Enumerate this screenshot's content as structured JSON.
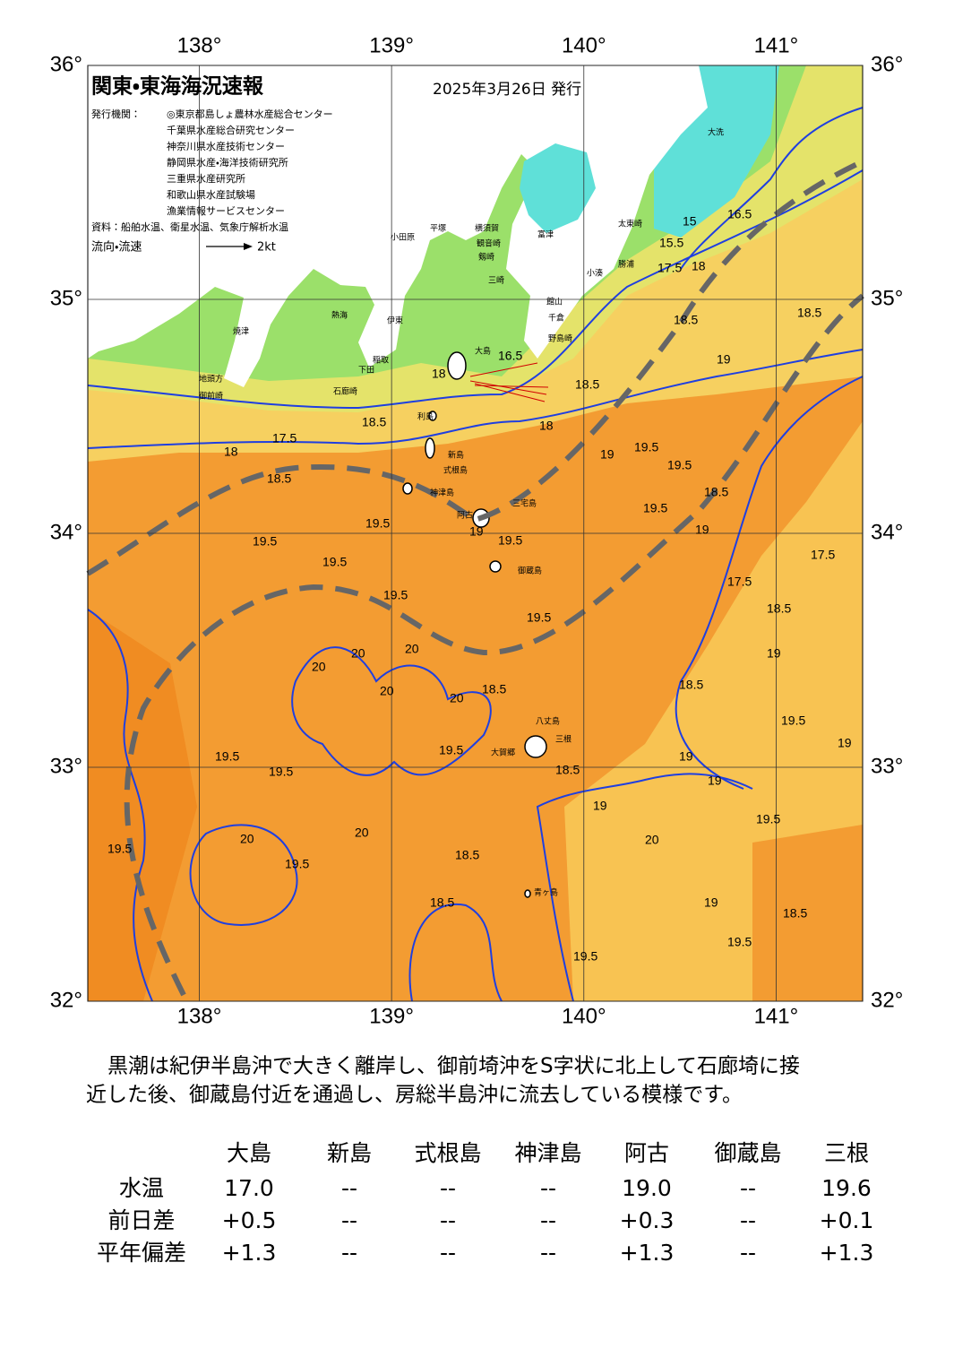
{
  "header": {
    "title": "関東・東海海況速報",
    "date": "2025年3月26日 発行",
    "issuer_label": "発行機関：",
    "issuers": [
      "◎東京都島しょ農林水産総合センター",
      "千葉県水産総合研究センター",
      "神奈川県水産技術センター",
      "静岡県水産・海洋技術研究所",
      "三重県水産研究所",
      "和歌山県水産試験場",
      "漁業情報サービスセンター"
    ],
    "source": "資料：船舶水温、衛星水温、気象庁解析水温",
    "flow_legend": "流向・流速",
    "flow_scale": "2kt"
  },
  "map": {
    "xlim": [
      137.42,
      141.45
    ],
    "ylim": [
      32,
      36
    ],
    "lon_ticks": [
      {
        "value": 138,
        "label": "138°"
      },
      {
        "value": 139,
        "label": "139°"
      },
      {
        "value": 140,
        "label": "140°"
      },
      {
        "value": 141,
        "label": "141°"
      }
    ],
    "lat_ticks": [
      {
        "value": 32,
        "label": "32°"
      },
      {
        "value": 33,
        "label": "33°"
      },
      {
        "value": 34,
        "label": "34°"
      },
      {
        "value": 35,
        "label": "35°"
      },
      {
        "value": 36,
        "label": "36°"
      }
    ],
    "places": [
      "大洗",
      "太東崎",
      "勝浦",
      "小湊",
      "館山",
      "千倉",
      "野島崎",
      "富津",
      "横須賀",
      "観音崎",
      "剱崎",
      "三崎",
      "平塚",
      "小田原",
      "熱海",
      "伊東",
      "稲取",
      "下田",
      "石廊崎",
      "御前崎",
      "地頭方",
      "焼津",
      "大島",
      "利島",
      "新島",
      "式根島",
      "神津島",
      "三宅島",
      "阿古",
      "御蔵島",
      "八丈島",
      "三根",
      "大賀郷",
      "青ヶ島"
    ],
    "contour_labels": [
      "16.5",
      "18",
      "15",
      "15.5",
      "16.5",
      "17.5",
      "18",
      "18.5",
      "18.5",
      "18.5",
      "19",
      "18.5",
      "17.5",
      "18",
      "18.5",
      "19.5",
      "19",
      "19.5",
      "19.5",
      "18.5",
      "19.5",
      "19",
      "18",
      "19",
      "19.5",
      "19.5",
      "19.5",
      "17.5",
      "17.5",
      "18.5",
      "19.5",
      "19.5",
      "19",
      "20",
      "20",
      "20",
      "20",
      "20",
      "18.5",
      "18.5",
      "19.5",
      "19.5",
      "19.5",
      "19.5",
      "18.5",
      "19",
      "19",
      "19",
      "19",
      "19.5",
      "20",
      "20",
      "19.5",
      "19.5",
      "18.5",
      "20",
      "18.5",
      "19",
      "18.5",
      "19.5",
      "19.5"
    ]
  },
  "commentary": [
    "黒潮は紀伊半島沖で大きく離岸し、御前埼沖をS字状に北上して石廊埼に接",
    "近した後、御蔵島付近を通過し、房総半島沖に流去している模様です。"
  ],
  "table": {
    "columns": [
      "大島",
      "新島",
      "式根島",
      "神津島",
      "阿古",
      "御蔵島",
      "三根"
    ],
    "rows": [
      {
        "label": "水温",
        "values": [
          "17.0",
          "--",
          "--",
          "--",
          "19.0",
          "--",
          "19.6"
        ]
      },
      {
        "label": "前日差",
        "values": [
          "+0.5",
          "--",
          "--",
          "--",
          "+0.3",
          "--",
          "+0.1"
        ]
      },
      {
        "label": "平年偏差",
        "values": [
          "+1.3",
          "--",
          "--",
          "--",
          "+1.3",
          "--",
          "+1.3"
        ]
      }
    ]
  }
}
